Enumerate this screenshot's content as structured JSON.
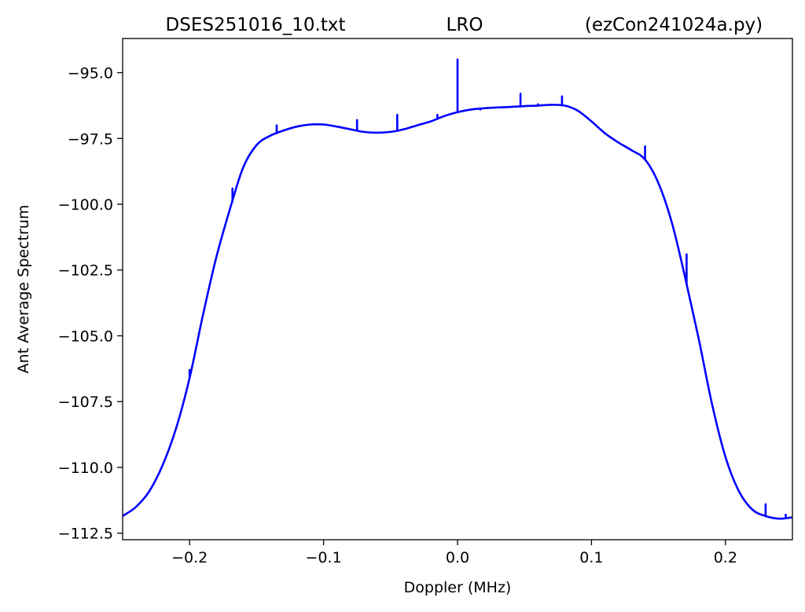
{
  "chart_data": {
    "type": "line",
    "title_parts": [
      "DSES251016_10.txt",
      "LRO",
      "(ezCon241024a.py)"
    ],
    "xlabel": "Doppler (MHz)",
    "ylabel": "Ant Average Spectrum",
    "xlim": [
      -0.25,
      0.25
    ],
    "ylim": [
      -112.75,
      -93.7
    ],
    "xticks": [
      -0.2,
      -0.1,
      0.0,
      0.1,
      0.2
    ],
    "xtick_labels": [
      "−0.2",
      "−0.1",
      "0.0",
      "0.1",
      "0.2"
    ],
    "yticks": [
      -95.0,
      -97.5,
      -100.0,
      -102.5,
      -105.0,
      -107.5,
      -110.0,
      -112.5
    ],
    "ytick_labels": [
      "−95.0",
      "−97.5",
      "−100.0",
      "−102.5",
      "−105.0",
      "−107.5",
      "−110.0",
      "−112.5"
    ],
    "grid": false,
    "series": [
      {
        "color": "#0000ff",
        "x": [
          -0.25,
          -0.24,
          -0.23,
          -0.22,
          -0.21,
          -0.2,
          -0.19,
          -0.18,
          -0.17,
          -0.16,
          -0.15,
          -0.14,
          -0.13,
          -0.12,
          -0.11,
          -0.1,
          -0.09,
          -0.08,
          -0.07,
          -0.06,
          -0.05,
          -0.04,
          -0.03,
          -0.02,
          -0.01,
          0.0,
          0.01,
          0.02,
          0.03,
          0.04,
          0.05,
          0.06,
          0.07,
          0.08,
          0.09,
          0.1,
          0.11,
          0.12,
          0.13,
          0.14,
          0.15,
          0.16,
          0.17,
          0.18,
          0.19,
          0.2,
          0.21,
          0.22,
          0.23,
          0.24,
          0.25
        ],
        "y": [
          -111.85,
          -111.5,
          -110.9,
          -109.9,
          -108.5,
          -106.6,
          -104.2,
          -102.0,
          -100.2,
          -98.6,
          -97.75,
          -97.4,
          -97.2,
          -97.05,
          -96.97,
          -96.97,
          -97.05,
          -97.15,
          -97.25,
          -97.28,
          -97.25,
          -97.15,
          -97.0,
          -96.85,
          -96.65,
          -96.5,
          -96.4,
          -96.35,
          -96.32,
          -96.3,
          -96.27,
          -96.25,
          -96.22,
          -96.25,
          -96.45,
          -96.85,
          -97.3,
          -97.65,
          -97.95,
          -98.3,
          -99.2,
          -100.7,
          -102.8,
          -105.1,
          -107.6,
          -109.6,
          -110.9,
          -111.6,
          -111.85,
          -111.95,
          -111.9
        ],
        "spikes": [
          {
            "x": -0.2,
            "y": -106.3
          },
          {
            "x": -0.168,
            "y": -99.4
          },
          {
            "x": -0.135,
            "y": -97.0
          },
          {
            "x": -0.075,
            "y": -96.8
          },
          {
            "x": -0.045,
            "y": -96.6
          },
          {
            "x": -0.015,
            "y": -96.6
          },
          {
            "x": 0.0,
            "y": -94.5
          },
          {
            "x": 0.017,
            "y": -96.4
          },
          {
            "x": 0.047,
            "y": -95.8
          },
          {
            "x": 0.06,
            "y": -96.2
          },
          {
            "x": 0.078,
            "y": -95.9
          },
          {
            "x": 0.14,
            "y": -97.8
          },
          {
            "x": 0.171,
            "y": -101.9
          },
          {
            "x": 0.23,
            "y": -111.4
          },
          {
            "x": 0.245,
            "y": -111.8
          }
        ]
      }
    ]
  }
}
